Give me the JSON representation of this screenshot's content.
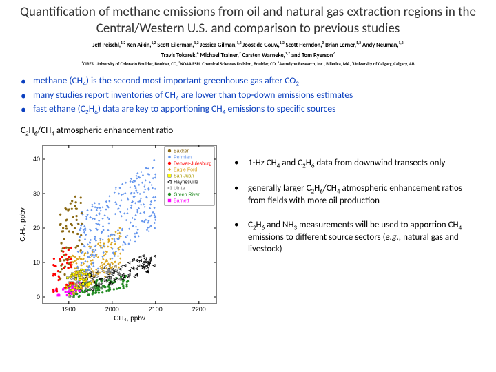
{
  "title": "Quantification of methane emissions from oil and natural gas extraction regions in the Central/Western U.S. and comparison to previous studies",
  "authors_line1": "Jeff Peischl,<sup>1,2</sup> Ken Aikin,<sup>1,2</sup> Scott Eilerman,<sup>1,2</sup> Jessica Gilman,<sup>1,2</sup> Joost de Gouw,<sup>1,2</sup> Scott Herndon,<sup>3</sup> Brian Lerner,<sup>1,2</sup> Andy Neuman,<sup>1,2</sup>",
  "authors_line2": "Travis Tokarek,<sup>4</sup> Michael Trainer,<sup>2</sup> Carsten Warneke,<sup>1,2</sup> and Tom Ryerson<sup>2</sup>",
  "affiliations": "<sup>1</sup>CIRES, University of Colorado Boulder, Boulder, CO, <sup>2</sup>NOAA ESRL Chemical Sciences Division, Boulder, CO, <sup>3</sup>Aerodyne Research, Inc., Billerica, MA, <sup>4</sup>University of Calgary, Calgary, AB",
  "top_bullets": [
    "methane (CH<sub>4</sub>) is the second most important greenhouse gas after CO<sub>2</sub>",
    "many studies report inventories of CH<sub>4</sub> are lower than top-down emissions estimates",
    "fast ethane (C<sub>2</sub>H<sub>6</sub>) data are key to apportioning CH<sub>4</sub> emissions to specific sources"
  ],
  "chart_title": "C<sub>2</sub>H<sub>6</sub>/CH<sub>4</sub> atmospheric enhancement ratio",
  "right_bullets": [
    "1-Hz CH<sub>4</sub> and C<sub>2</sub>H<sub>6</sub> data from downwind transects only",
    "generally larger C<sub>2</sub>H<sub>6</sub>/CH<sub>4</sub> atmospheric enhancement ratios from fields with more oil production",
    "C<sub>2</sub>H<sub>6</sub> and NH<sub>3</sub> measurements will be used to apportion CH<sub>4</sub> emissions to different source sectors (<i>e.g.,</i> natural gas and livestock)"
  ],
  "chart": {
    "type": "scatter",
    "xlabel": "CH₄, ppbv",
    "ylabel": "C₂H₆, ppbv",
    "xlim": [
      1840,
      2240
    ],
    "ylim": [
      -2,
      44
    ],
    "xticks": [
      1900,
      2000,
      2100,
      2200
    ],
    "yticks": [
      0,
      10,
      20,
      30,
      40
    ],
    "background": "#ffffff",
    "border_color": "#000000",
    "series": [
      {
        "name": "Bakken",
        "color": "#8b6914",
        "marker": "circle"
      },
      {
        "name": "Permian",
        "color": "#6495ed",
        "marker": "diamond"
      },
      {
        "name": "Denver-Julesburg",
        "color": "#ff0000",
        "marker": "circle"
      },
      {
        "name": "Eagle Ford",
        "color": "#daa520",
        "marker": "diamond"
      },
      {
        "name": "San Juan",
        "color": "#ffff00",
        "marker": "square"
      },
      {
        "name": "Haynesville",
        "color": "#000000",
        "marker": "triangle-left"
      },
      {
        "name": "Uinta",
        "color": "#808080",
        "marker": "triangle-left"
      },
      {
        "name": "Green River",
        "color": "#228b22",
        "marker": "circle"
      },
      {
        "name": "Barnett",
        "color": "#ff00ff",
        "marker": "square"
      }
    ]
  }
}
